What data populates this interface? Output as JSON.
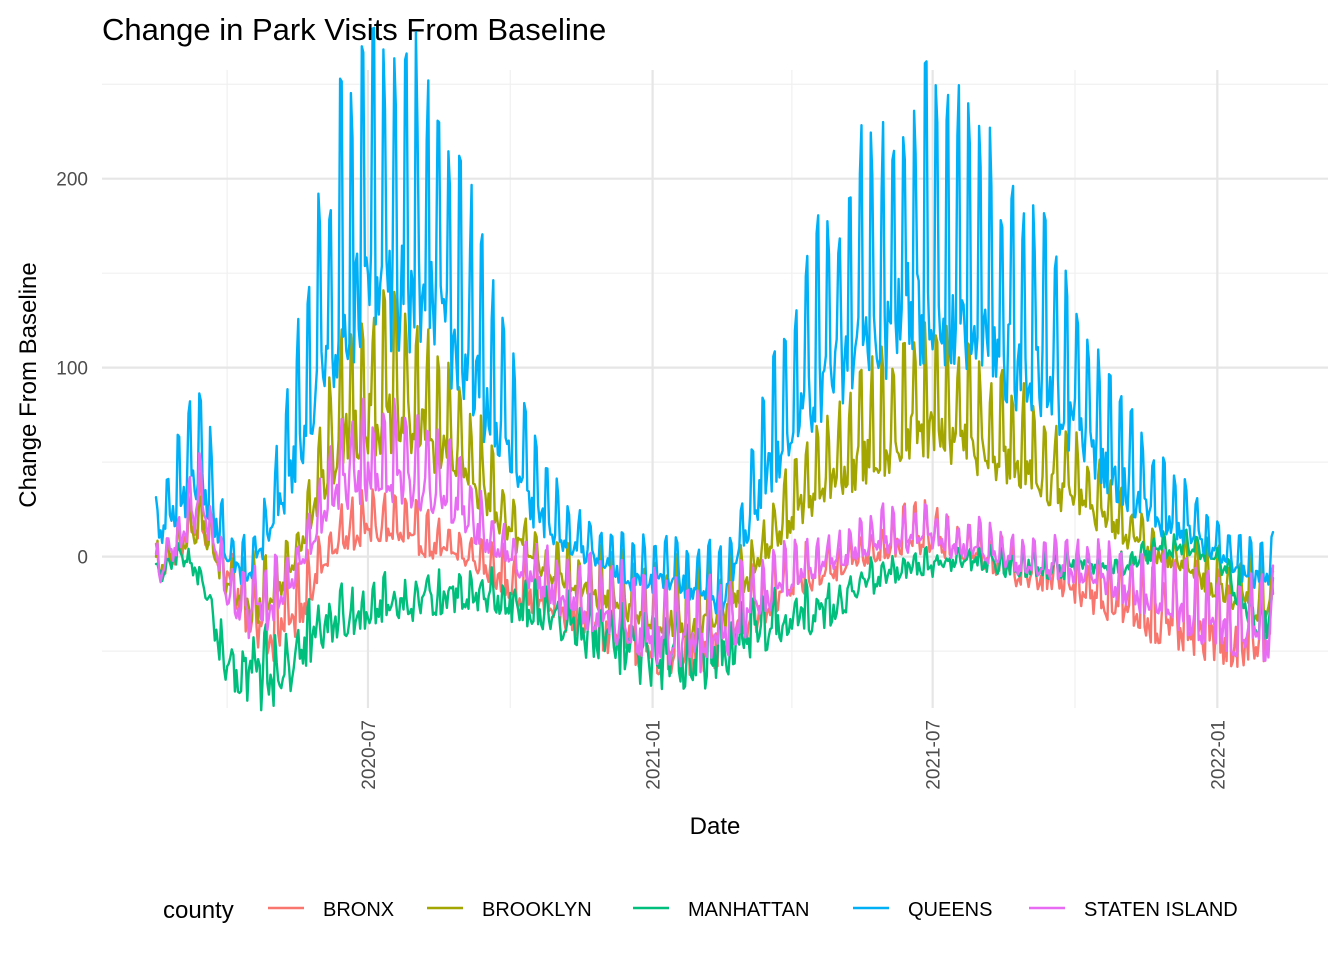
{
  "chart_data": {
    "type": "line",
    "title": "Change in Park Visits From Baseline",
    "xlabel": "Date",
    "ylabel": "Change From Baseline",
    "x_range": [
      "2020-02-15",
      "2022-02-06"
    ],
    "ylim": [
      -78,
      248
    ],
    "x_ticks": [
      {
        "date": "2020-07-01",
        "label": "2020-07"
      },
      {
        "date": "2021-01-01",
        "label": "2021-01"
      },
      {
        "date": "2021-07-01",
        "label": "2021-07"
      },
      {
        "date": "2022-01-01",
        "label": "2022-01"
      }
    ],
    "x_minor_ticks": [
      "2020-04-01",
      "2020-10-01",
      "2021-04-01",
      "2021-10-01"
    ],
    "y_ticks": [
      0,
      100,
      200
    ],
    "y_minor_ticks": [
      -50,
      50,
      150,
      250
    ],
    "grid": true,
    "legend": {
      "title": "county",
      "position": "bottom"
    },
    "series": [
      {
        "name": "BRONX",
        "color": "#F8766D",
        "points": [
          [
            "2020-02-15",
            -10
          ],
          [
            "2020-03-01",
            5
          ],
          [
            "2020-03-15",
            20
          ],
          [
            "2020-04-01",
            -10
          ],
          [
            "2020-04-15",
            -30
          ],
          [
            "2020-05-01",
            -40
          ],
          [
            "2020-05-15",
            -30
          ],
          [
            "2020-06-01",
            -5
          ],
          [
            "2020-06-15",
            10
          ],
          [
            "2020-07-01",
            15
          ],
          [
            "2020-07-15",
            15
          ],
          [
            "2020-08-01",
            10
          ],
          [
            "2020-08-15",
            5
          ],
          [
            "2020-09-01",
            0
          ],
          [
            "2020-09-15",
            -5
          ],
          [
            "2020-10-01",
            -15
          ],
          [
            "2020-10-15",
            -20
          ],
          [
            "2020-11-01",
            -25
          ],
          [
            "2020-11-15",
            -30
          ],
          [
            "2020-12-01",
            -35
          ],
          [
            "2020-12-15",
            -40
          ],
          [
            "2021-01-01",
            -45
          ],
          [
            "2021-01-15",
            -45
          ],
          [
            "2021-02-01",
            -45
          ],
          [
            "2021-02-15",
            -42
          ],
          [
            "2021-03-01",
            -35
          ],
          [
            "2021-03-15",
            -25
          ],
          [
            "2021-04-01",
            -15
          ],
          [
            "2021-04-15",
            -10
          ],
          [
            "2021-05-01",
            -5
          ],
          [
            "2021-05-15",
            0
          ],
          [
            "2021-06-01",
            5
          ],
          [
            "2021-06-15",
            10
          ],
          [
            "2021-07-01",
            10
          ],
          [
            "2021-07-15",
            5
          ],
          [
            "2021-08-01",
            0
          ],
          [
            "2021-08-15",
            -5
          ],
          [
            "2021-09-01",
            -10
          ],
          [
            "2021-09-15",
            -10
          ],
          [
            "2021-10-01",
            -15
          ],
          [
            "2021-10-15",
            -20
          ],
          [
            "2021-11-01",
            -25
          ],
          [
            "2021-11-15",
            -30
          ],
          [
            "2021-12-01",
            -35
          ],
          [
            "2021-12-15",
            -38
          ],
          [
            "2022-01-01",
            -40
          ],
          [
            "2022-01-15",
            -42
          ],
          [
            "2022-02-01",
            -40
          ],
          [
            "2022-02-06",
            -38
          ]
        ]
      },
      {
        "name": "BROOKLYN",
        "color": "#A3A500",
        "points": [
          [
            "2020-02-15",
            -10
          ],
          [
            "2020-03-01",
            5
          ],
          [
            "2020-03-15",
            20
          ],
          [
            "2020-04-01",
            -15
          ],
          [
            "2020-04-15",
            -25
          ],
          [
            "2020-05-01",
            -20
          ],
          [
            "2020-05-15",
            0
          ],
          [
            "2020-06-01",
            40
          ],
          [
            "2020-06-15",
            70
          ],
          [
            "2020-07-01",
            80
          ],
          [
            "2020-07-15",
            80
          ],
          [
            "2020-08-01",
            75
          ],
          [
            "2020-08-15",
            65
          ],
          [
            "2020-09-01",
            50
          ],
          [
            "2020-09-15",
            35
          ],
          [
            "2020-10-01",
            15
          ],
          [
            "2020-10-15",
            0
          ],
          [
            "2020-11-01",
            -10
          ],
          [
            "2020-11-15",
            -15
          ],
          [
            "2020-12-01",
            -20
          ],
          [
            "2020-12-15",
            -25
          ],
          [
            "2021-01-01",
            -30
          ],
          [
            "2021-01-15",
            -30
          ],
          [
            "2021-02-01",
            -35
          ],
          [
            "2021-02-15",
            -30
          ],
          [
            "2021-03-01",
            -15
          ],
          [
            "2021-03-15",
            5
          ],
          [
            "2021-04-01",
            25
          ],
          [
            "2021-04-15",
            35
          ],
          [
            "2021-05-01",
            45
          ],
          [
            "2021-05-15",
            55
          ],
          [
            "2021-06-01",
            65
          ],
          [
            "2021-06-15",
            70
          ],
          [
            "2021-07-01",
            70
          ],
          [
            "2021-07-15",
            68
          ],
          [
            "2021-08-01",
            62
          ],
          [
            "2021-08-15",
            55
          ],
          [
            "2021-09-01",
            48
          ],
          [
            "2021-09-15",
            42
          ],
          [
            "2021-10-01",
            35
          ],
          [
            "2021-10-15",
            25
          ],
          [
            "2021-11-01",
            15
          ],
          [
            "2021-11-15",
            5
          ],
          [
            "2021-12-01",
            0
          ],
          [
            "2021-12-15",
            -5
          ],
          [
            "2022-01-01",
            -15
          ],
          [
            "2022-01-15",
            -20
          ],
          [
            "2022-02-01",
            -25
          ],
          [
            "2022-02-06",
            -20
          ]
        ]
      },
      {
        "name": "MANHATTAN",
        "color": "#00BF7D",
        "points": [
          [
            "2020-02-15",
            -10
          ],
          [
            "2020-03-01",
            0
          ],
          [
            "2020-03-15",
            -10
          ],
          [
            "2020-04-01",
            -60
          ],
          [
            "2020-04-15",
            -65
          ],
          [
            "2020-05-01",
            -65
          ],
          [
            "2020-05-15",
            -55
          ],
          [
            "2020-06-01",
            -40
          ],
          [
            "2020-06-15",
            -32
          ],
          [
            "2020-07-01",
            -28
          ],
          [
            "2020-07-15",
            -25
          ],
          [
            "2020-08-01",
            -25
          ],
          [
            "2020-08-15",
            -22
          ],
          [
            "2020-09-01",
            -20
          ],
          [
            "2020-09-15",
            -20
          ],
          [
            "2020-10-01",
            -25
          ],
          [
            "2020-10-15",
            -30
          ],
          [
            "2020-11-01",
            -35
          ],
          [
            "2020-11-15",
            -40
          ],
          [
            "2020-12-01",
            -45
          ],
          [
            "2020-12-15",
            -50
          ],
          [
            "2021-01-01",
            -55
          ],
          [
            "2021-01-15",
            -55
          ],
          [
            "2021-02-01",
            -58
          ],
          [
            "2021-02-15",
            -55
          ],
          [
            "2021-03-01",
            -45
          ],
          [
            "2021-03-15",
            -40
          ],
          [
            "2021-04-01",
            -35
          ],
          [
            "2021-04-15",
            -30
          ],
          [
            "2021-05-01",
            -25
          ],
          [
            "2021-05-15",
            -15
          ],
          [
            "2021-06-01",
            -10
          ],
          [
            "2021-06-15",
            -5
          ],
          [
            "2021-07-01",
            -5
          ],
          [
            "2021-07-15",
            -3
          ],
          [
            "2021-08-01",
            -2
          ],
          [
            "2021-08-15",
            -5
          ],
          [
            "2021-09-01",
            -5
          ],
          [
            "2021-09-15",
            -8
          ],
          [
            "2021-10-01",
            -5
          ],
          [
            "2021-10-15",
            -5
          ],
          [
            "2021-11-01",
            -5
          ],
          [
            "2021-11-15",
            0
          ],
          [
            "2021-12-01",
            5
          ],
          [
            "2021-12-15",
            5
          ],
          [
            "2022-01-01",
            0
          ],
          [
            "2022-01-15",
            -20
          ],
          [
            "2022-02-01",
            -35
          ],
          [
            "2022-02-06",
            -30
          ]
        ]
      },
      {
        "name": "QUEENS",
        "color": "#00B0F6",
        "points": [
          [
            "2020-02-15",
            10
          ],
          [
            "2020-03-01",
            30
          ],
          [
            "2020-03-15",
            50
          ],
          [
            "2020-04-01",
            0
          ],
          [
            "2020-04-15",
            -10
          ],
          [
            "2020-05-01",
            20
          ],
          [
            "2020-05-15",
            60
          ],
          [
            "2020-06-01",
            110
          ],
          [
            "2020-06-15",
            145
          ],
          [
            "2020-07-01",
            160
          ],
          [
            "2020-07-15",
            160
          ],
          [
            "2020-08-01",
            155
          ],
          [
            "2020-08-15",
            145
          ],
          [
            "2020-09-01",
            120
          ],
          [
            "2020-09-15",
            90
          ],
          [
            "2020-10-01",
            60
          ],
          [
            "2020-10-15",
            30
          ],
          [
            "2020-11-01",
            15
          ],
          [
            "2020-11-15",
            5
          ],
          [
            "2020-12-01",
            0
          ],
          [
            "2020-12-15",
            -10
          ],
          [
            "2021-01-01",
            -10
          ],
          [
            "2021-01-15",
            -10
          ],
          [
            "2021-02-01",
            -15
          ],
          [
            "2021-02-15",
            -20
          ],
          [
            "2021-03-01",
            10
          ],
          [
            "2021-03-15",
            50
          ],
          [
            "2021-04-01",
            75
          ],
          [
            "2021-04-15",
            95
          ],
          [
            "2021-05-01",
            110
          ],
          [
            "2021-05-15",
            125
          ],
          [
            "2021-06-01",
            135
          ],
          [
            "2021-06-15",
            150
          ],
          [
            "2021-07-01",
            150
          ],
          [
            "2021-07-15",
            140
          ],
          [
            "2021-08-01",
            130
          ],
          [
            "2021-08-15",
            120
          ],
          [
            "2021-09-01",
            110
          ],
          [
            "2021-09-15",
            100
          ],
          [
            "2021-10-01",
            80
          ],
          [
            "2021-10-15",
            60
          ],
          [
            "2021-11-01",
            45
          ],
          [
            "2021-11-15",
            30
          ],
          [
            "2021-12-01",
            20
          ],
          [
            "2021-12-15",
            15
          ],
          [
            "2022-01-01",
            5
          ],
          [
            "2022-01-15",
            -5
          ],
          [
            "2022-02-01",
            -10
          ],
          [
            "2022-02-06",
            -8
          ]
        ]
      },
      {
        "name": "STATEN ISLAND",
        "color": "#E76BF3",
        "points": [
          [
            "2020-02-15",
            -10
          ],
          [
            "2020-03-01",
            10
          ],
          [
            "2020-03-15",
            30
          ],
          [
            "2020-04-01",
            -20
          ],
          [
            "2020-04-15",
            -30
          ],
          [
            "2020-05-01",
            -25
          ],
          [
            "2020-05-15",
            -10
          ],
          [
            "2020-06-01",
            20
          ],
          [
            "2020-06-15",
            40
          ],
          [
            "2020-07-01",
            45
          ],
          [
            "2020-07-15",
            45
          ],
          [
            "2020-08-01",
            40
          ],
          [
            "2020-08-15",
            35
          ],
          [
            "2020-09-01",
            25
          ],
          [
            "2020-09-15",
            10
          ],
          [
            "2020-10-01",
            0
          ],
          [
            "2020-10-15",
            -10
          ],
          [
            "2020-11-01",
            -20
          ],
          [
            "2020-11-15",
            -25
          ],
          [
            "2020-12-01",
            -30
          ],
          [
            "2020-12-15",
            -35
          ],
          [
            "2021-01-01",
            -40
          ],
          [
            "2021-01-15",
            -42
          ],
          [
            "2021-02-01",
            -45
          ],
          [
            "2021-02-15",
            -40
          ],
          [
            "2021-03-01",
            -30
          ],
          [
            "2021-03-15",
            -20
          ],
          [
            "2021-04-01",
            -10
          ],
          [
            "2021-04-15",
            -5
          ],
          [
            "2021-05-01",
            0
          ],
          [
            "2021-05-15",
            5
          ],
          [
            "2021-06-01",
            10
          ],
          [
            "2021-06-15",
            10
          ],
          [
            "2021-07-01",
            10
          ],
          [
            "2021-07-15",
            5
          ],
          [
            "2021-08-01",
            5
          ],
          [
            "2021-08-15",
            0
          ],
          [
            "2021-09-01",
            -5
          ],
          [
            "2021-09-15",
            -5
          ],
          [
            "2021-10-01",
            -8
          ],
          [
            "2021-10-15",
            -10
          ],
          [
            "2021-11-01",
            -15
          ],
          [
            "2021-11-15",
            -20
          ],
          [
            "2021-12-01",
            -25
          ],
          [
            "2021-12-15",
            -30
          ],
          [
            "2022-01-01",
            -35
          ],
          [
            "2022-01-15",
            -40
          ],
          [
            "2022-02-01",
            -42
          ],
          [
            "2022-02-06",
            -40
          ]
        ]
      }
    ]
  }
}
